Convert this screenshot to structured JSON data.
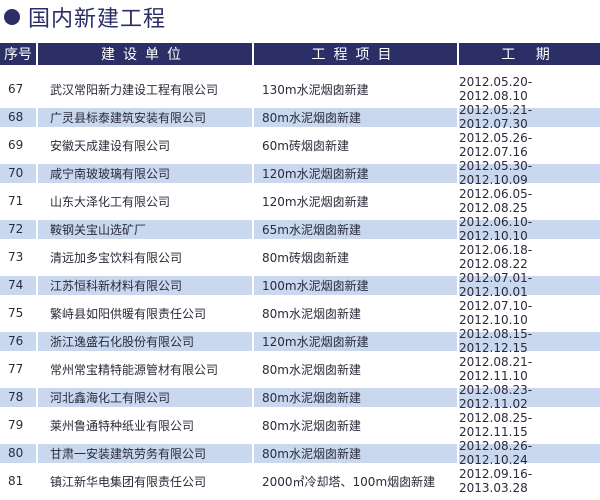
{
  "title": "国内新建工程",
  "colors": {
    "header": "#2b2f66",
    "alt_row": "#c9d8ef"
  },
  "headers": [
    "序号",
    "建设单位",
    "工程项目",
    "工 期"
  ],
  "rows": [
    {
      "no": "67",
      "company": "武汉常阳新力建设工程有限公司",
      "project": "130m水泥烟囱新建",
      "period": "2012.05.20-2012.08.10"
    },
    {
      "no": "68",
      "company": "广灵县标泰建筑安装有限公司",
      "project": "80m水泥烟囱新建",
      "period": "2012.05.21-2012.07.30"
    },
    {
      "no": "69",
      "company": "安徽天成建设有限公司",
      "project": "60m砖烟囱新建",
      "period": "2012.05.26-2012.07.16"
    },
    {
      "no": "70",
      "company": "咸宁南玻玻璃有限公司",
      "project": "120m水泥烟囱新建",
      "period": "2012.05.30-2012.10.09"
    },
    {
      "no": "71",
      "company": "山东大泽化工有限公司",
      "project": "120m水泥烟囱新建",
      "period": "2012.06.05-2012.08.25"
    },
    {
      "no": "72",
      "company": "鞍钢关宝山选矿厂",
      "project": "65m水泥烟囱新建",
      "period": "2012.06.10-2012.10.10"
    },
    {
      "no": "73",
      "company": "清远加多宝饮料有限公司",
      "project": "80m砖烟囱新建",
      "period": "2012.06.18-2012.08.22"
    },
    {
      "no": "74",
      "company": "江苏恒科新材料有限公司",
      "project": "100m水泥烟囱新建",
      "period": "2012.07.01-2012.10.01"
    },
    {
      "no": "75",
      "company": "繁峙县如阳供暖有限责任公司",
      "project": "80m水泥烟囱新建",
      "period": "2012.07.10-2012.10.10"
    },
    {
      "no": "76",
      "company": "浙江逸盛石化股份有限公司",
      "project": "120m水泥烟囱新建",
      "period": "2012.08.15-2012.12.15"
    },
    {
      "no": "77",
      "company": "常州常宝精特能源管材有限公司",
      "project": "80m水泥烟囱新建",
      "period": "2012.08.21-2012.11.10"
    },
    {
      "no": "78",
      "company": "河北鑫海化工有限公司",
      "project": "80m水泥烟囱新建",
      "period": "2012.08.23-2012.11.02"
    },
    {
      "no": "79",
      "company": "莱州鲁通特种纸业有限公司",
      "project": "80m水泥烟囱新建",
      "period": "2012.08.25-2012.11.15"
    },
    {
      "no": "80",
      "company": "甘肃一安装建筑劳务有限公司",
      "project": "80m水泥烟囱新建",
      "period": "2012.08.26-2012.10.24"
    },
    {
      "no": "81",
      "company": "镇江新华电集团有限责任公司",
      "project": "2000㎡冷却塔、100m烟囱新建",
      "period": "2012.09.16-2013.03.28"
    }
  ]
}
